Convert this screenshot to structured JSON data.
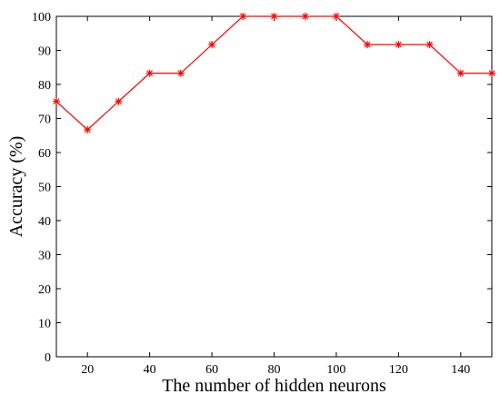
{
  "chart_data": {
    "type": "line",
    "title": "",
    "xlabel": "The number of hidden neurons",
    "ylabel": "Accuracy (%)",
    "xlim": [
      10,
      150
    ],
    "ylim": [
      0,
      100
    ],
    "xticks": [
      20,
      40,
      60,
      80,
      100,
      120,
      140
    ],
    "yticks": [
      0,
      10,
      20,
      30,
      40,
      50,
      60,
      70,
      80,
      90,
      100
    ],
    "grid": false,
    "legend": "none",
    "series": [
      {
        "color": "#ff0000",
        "marker": "asterisk",
        "x": [
          10,
          20,
          30,
          40,
          50,
          60,
          70,
          80,
          90,
          100,
          110,
          120,
          130,
          140,
          150
        ],
        "y": [
          75,
          66.7,
          75,
          83.3,
          83.3,
          91.7,
          100,
          100,
          100,
          100,
          91.7,
          91.7,
          91.7,
          83.3,
          83.3
        ]
      }
    ]
  }
}
